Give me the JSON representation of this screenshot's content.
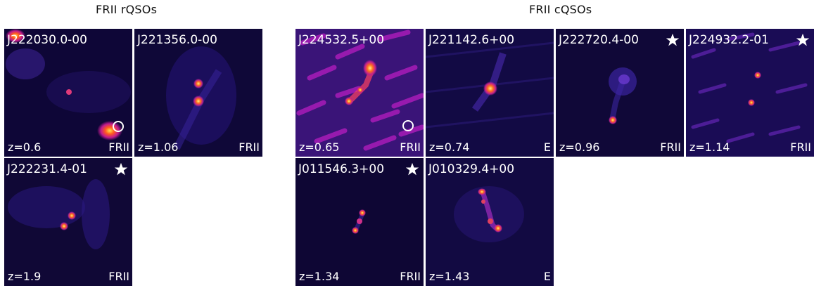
{
  "groups": {
    "rqso_title": "FRII rQSOs",
    "cqso_title": "FRII cQSOs"
  },
  "panels": [
    {
      "name": "J222030.0-00",
      "z": "z=0.6",
      "cls": "FRII",
      "marker": "circle"
    },
    {
      "name": "J221356.0-00",
      "z": "z=1.06",
      "cls": "FRII",
      "marker": ""
    },
    {
      "name": "J222231.4-01",
      "z": "z=1.9",
      "cls": "FRII",
      "marker": "star"
    },
    {
      "name": "J224532.5+00",
      "z": "z=0.65",
      "cls": "FRII",
      "marker": "circle"
    },
    {
      "name": "J221142.6+00",
      "z": "z=0.74",
      "cls": "E",
      "marker": ""
    },
    {
      "name": "J222720.4-00",
      "z": "z=0.96",
      "cls": "FRII",
      "marker": "star"
    },
    {
      "name": "J224932.2-01",
      "z": "z=1.14",
      "cls": "FRII",
      "marker": "star"
    },
    {
      "name": "J011546.3+00",
      "z": "z=1.34",
      "cls": "FRII",
      "marker": "star"
    },
    {
      "name": "J010329.4+00",
      "z": "z=1.43",
      "cls": "E",
      "marker": ""
    }
  ],
  "colors": {
    "background": "#0c0530",
    "noise": "#2b1a7a",
    "emission": "#a01fb0",
    "core": "#ffd23f",
    "label": "#ffffff"
  }
}
